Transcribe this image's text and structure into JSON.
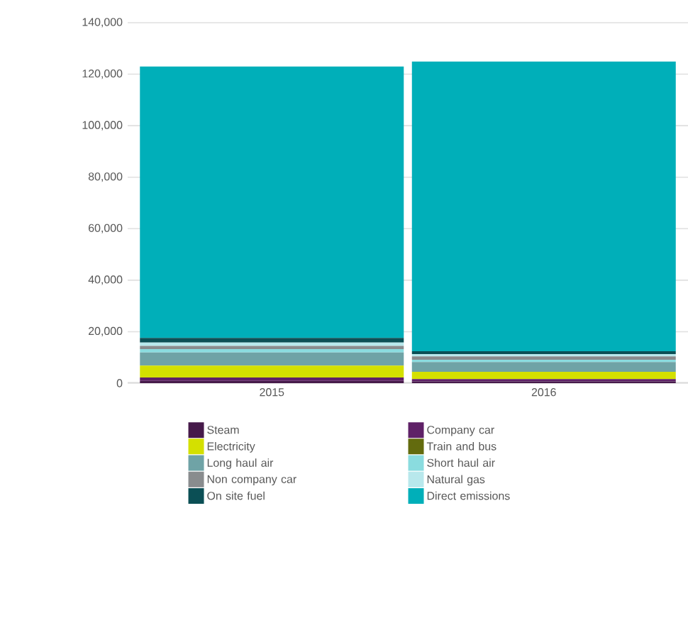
{
  "chart_data": {
    "type": "bar",
    "stacked": true,
    "categories": [
      "2015",
      "2016"
    ],
    "series": [
      {
        "name": "Steam",
        "color": "#461a4a",
        "values": [
          900,
          700
        ]
      },
      {
        "name": "Company car",
        "color": "#5f2167",
        "values": [
          1300,
          900
        ]
      },
      {
        "name": "Electricity",
        "color": "#d4e000",
        "values": [
          4600,
          2800
        ]
      },
      {
        "name": "Train and bus",
        "color": "#636b0e",
        "values": [
          null,
          null
        ]
      },
      {
        "name": "Long haul air",
        "color": "#6fa3a6",
        "values": [
          5100,
          3800
        ]
      },
      {
        "name": "Short haul air",
        "color": "#8adcdf",
        "values": [
          1300,
          900
        ]
      },
      {
        "name": "Non company car",
        "color": "#898c8e",
        "values": [
          1300,
          1300
        ]
      },
      {
        "name": "Natural gas",
        "color": "#b8e8ec",
        "values": [
          1300,
          900
        ]
      },
      {
        "name": "On site fuel",
        "color": "#0b4f55",
        "values": [
          1800,
          1100
        ]
      },
      {
        "name": "Direct emissions",
        "color": "#00afb9",
        "values": [
          105400,
          112500
        ]
      }
    ],
    "ylim": [
      0,
      140000
    ],
    "yticks": [
      {
        "value": 0,
        "label": "0"
      },
      {
        "value": 20000,
        "label": "20,000"
      },
      {
        "value": 40000,
        "label": "40,000"
      },
      {
        "value": 60000,
        "label": "60,000"
      },
      {
        "value": 80000,
        "label": "80,000"
      },
      {
        "value": 100000,
        "label": "100,000"
      },
      {
        "value": 120000,
        "label": "120,000"
      },
      {
        "value": 140000,
        "label": "140,000"
      }
    ],
    "grid": "y",
    "legend": "bottom"
  }
}
